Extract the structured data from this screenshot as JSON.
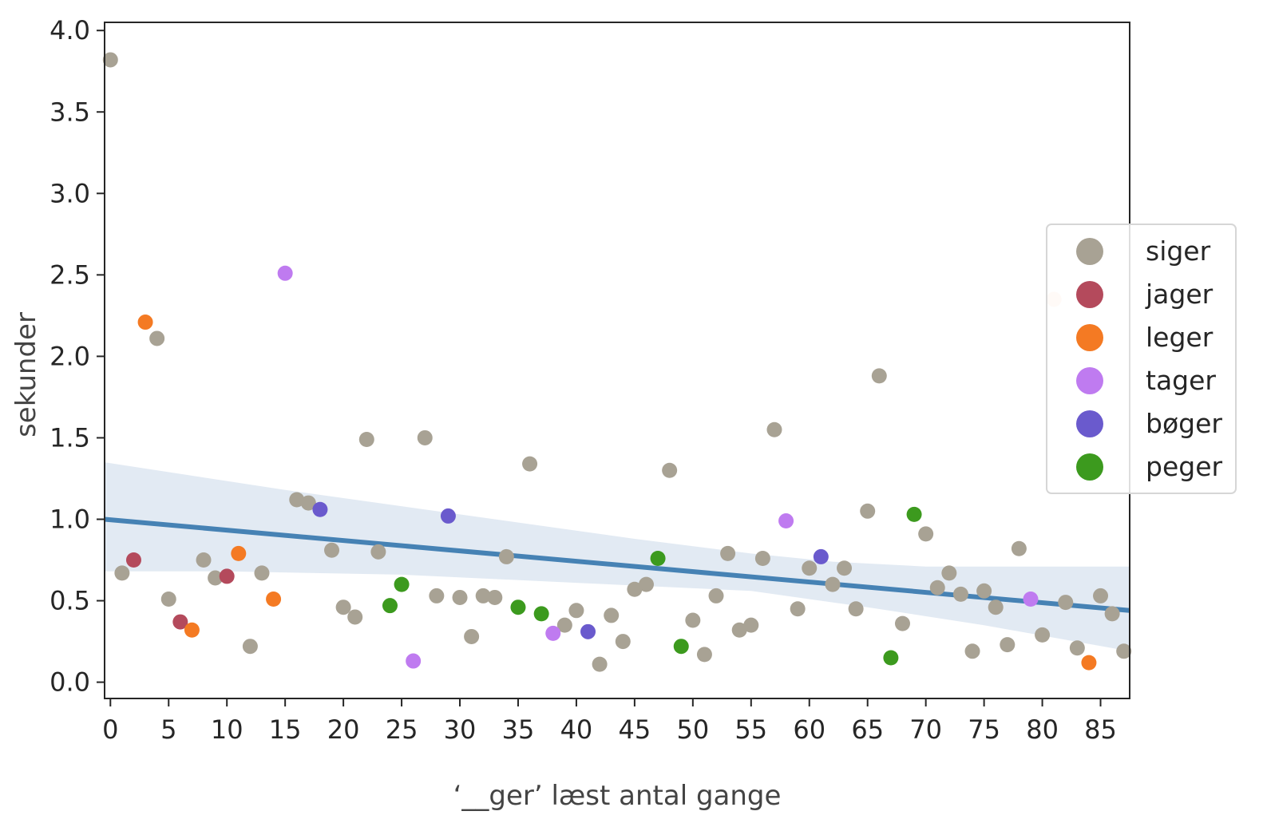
{
  "chart_data": {
    "type": "scatter",
    "title": "",
    "xlabel": "‘__ger’ læst antal gange",
    "ylabel": "sekunder",
    "xlim": [
      -0.5,
      87.5
    ],
    "ylim": [
      -0.1,
      4.05
    ],
    "xticks": [
      0,
      5,
      10,
      15,
      20,
      25,
      30,
      35,
      40,
      45,
      50,
      55,
      60,
      65,
      70,
      75,
      80,
      85
    ],
    "yticks": [
      0.0,
      0.5,
      1.0,
      1.5,
      2.0,
      2.5,
      3.0,
      3.5,
      4.0
    ],
    "xtick_labels": [
      "0",
      "5",
      "10",
      "15",
      "20",
      "25",
      "30",
      "35",
      "40",
      "45",
      "50",
      "55",
      "60",
      "65",
      "70",
      "75",
      "80",
      "85"
    ],
    "ytick_labels": [
      "0.0",
      "0.5",
      "1.0",
      "1.5",
      "2.0",
      "2.5",
      "3.0",
      "3.5",
      "4.0"
    ],
    "grid": false,
    "legend_position": "right",
    "regression": {
      "color": "#4682b4",
      "band_color": "#dfe8f2",
      "line": [
        [
          -0.5,
          1.0
        ],
        [
          87.5,
          0.44
        ]
      ],
      "band_upper": [
        [
          -0.5,
          1.35
        ],
        [
          15,
          1.18
        ],
        [
          30,
          1.03
        ],
        [
          45,
          0.88
        ],
        [
          55,
          0.79
        ],
        [
          62,
          0.74
        ],
        [
          70,
          0.71
        ],
        [
          87.5,
          0.71
        ]
      ],
      "band_lower": [
        [
          -0.5,
          0.68
        ],
        [
          10,
          0.68
        ],
        [
          25,
          0.66
        ],
        [
          40,
          0.61
        ],
        [
          55,
          0.56
        ],
        [
          65,
          0.46
        ],
        [
          75,
          0.35
        ],
        [
          87.5,
          0.19
        ]
      ]
    },
    "series": [
      {
        "name": "siger",
        "color": "#a8a294",
        "points": [
          [
            0,
            3.82
          ],
          [
            1,
            0.67
          ],
          [
            4,
            2.11
          ],
          [
            5,
            0.51
          ],
          [
            8,
            0.75
          ],
          [
            9,
            0.64
          ],
          [
            12,
            0.22
          ],
          [
            13,
            0.67
          ],
          [
            16,
            1.12
          ],
          [
            17,
            1.1
          ],
          [
            19,
            0.81
          ],
          [
            20,
            0.46
          ],
          [
            21,
            0.4
          ],
          [
            22,
            1.49
          ],
          [
            23,
            0.8
          ],
          [
            27,
            1.5
          ],
          [
            28,
            0.53
          ],
          [
            30,
            0.52
          ],
          [
            31,
            0.28
          ],
          [
            32,
            0.53
          ],
          [
            33,
            0.52
          ],
          [
            34,
            0.77
          ],
          [
            36,
            1.34
          ],
          [
            39,
            0.35
          ],
          [
            40,
            0.44
          ],
          [
            42,
            0.11
          ],
          [
            43,
            0.41
          ],
          [
            44,
            0.25
          ],
          [
            45,
            0.57
          ],
          [
            46,
            0.6
          ],
          [
            48,
            1.3
          ],
          [
            50,
            0.38
          ],
          [
            51,
            0.17
          ],
          [
            52,
            0.53
          ],
          [
            53,
            0.79
          ],
          [
            54,
            0.32
          ],
          [
            55,
            0.35
          ],
          [
            56,
            0.76
          ],
          [
            57,
            1.55
          ],
          [
            59,
            0.45
          ],
          [
            60,
            0.7
          ],
          [
            62,
            0.6
          ],
          [
            63,
            0.7
          ],
          [
            64,
            0.45
          ],
          [
            65,
            1.05
          ],
          [
            66,
            1.88
          ],
          [
            68,
            0.36
          ],
          [
            70,
            0.91
          ],
          [
            71,
            0.58
          ],
          [
            72,
            0.67
          ],
          [
            73,
            0.54
          ],
          [
            74,
            0.19
          ],
          [
            75,
            0.56
          ],
          [
            76,
            0.46
          ],
          [
            77,
            0.23
          ],
          [
            78,
            0.82
          ],
          [
            80,
            0.29
          ],
          [
            82,
            0.49
          ],
          [
            83,
            0.21
          ],
          [
            85,
            0.53
          ],
          [
            86,
            0.42
          ],
          [
            87,
            0.19
          ]
        ]
      },
      {
        "name": "jager",
        "color": "#b44a5c",
        "points": [
          [
            2,
            0.75
          ],
          [
            6,
            0.37
          ],
          [
            10,
            0.65
          ]
        ]
      },
      {
        "name": "leger",
        "color": "#f47a23",
        "points": [
          [
            3,
            2.21
          ],
          [
            7,
            0.32
          ],
          [
            11,
            0.79
          ],
          [
            14,
            0.51
          ],
          [
            84,
            0.12
          ]
        ]
      },
      {
        "name": "tager",
        "color": "#bf7bf0",
        "points": [
          [
            15,
            2.51
          ],
          [
            26,
            0.13
          ],
          [
            38,
            0.3
          ],
          [
            58,
            0.99
          ],
          [
            79,
            0.51
          ]
        ]
      },
      {
        "name": "bøger",
        "color": "#6a5acd",
        "points": [
          [
            18,
            1.06
          ],
          [
            29,
            1.02
          ],
          [
            41,
            0.31
          ],
          [
            61,
            0.77
          ]
        ]
      },
      {
        "name": "peger",
        "color": "#3c9a1e",
        "points": [
          [
            24,
            0.47
          ],
          [
            25,
            0.6
          ],
          [
            35,
            0.46
          ],
          [
            37,
            0.42
          ],
          [
            47,
            0.76
          ],
          [
            49,
            0.22
          ],
          [
            67,
            0.15
          ],
          [
            69,
            1.03
          ]
        ]
      }
    ],
    "extra_points": [
      {
        "color": "#fcdcc8",
        "points": [
          [
            81,
            2.35
          ]
        ]
      }
    ]
  }
}
